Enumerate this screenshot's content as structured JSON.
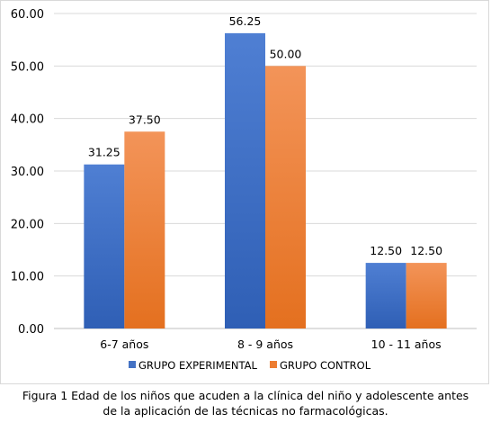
{
  "chart_data": {
    "type": "bar",
    "categories": [
      "6-7 años",
      "8 - 9 años",
      "10 - 11 años"
    ],
    "series": [
      {
        "name": "GRUPO EXPERIMENTAL",
        "values": [
          31.25,
          56.25,
          12.5
        ],
        "labels": [
          "31.25",
          "56.25",
          "12.50"
        ],
        "color": "#4472c4"
      },
      {
        "name": "GRUPO CONTROL",
        "values": [
          37.5,
          50.0,
          12.5
        ],
        "labels": [
          "37.50",
          "50.00",
          "12.50"
        ],
        "color": "#ed7d31"
      }
    ],
    "ylim": [
      0,
      60
    ],
    "yticks": [
      "0.00",
      "10.00",
      "20.00",
      "30.00",
      "40.00",
      "50.00",
      "60.00"
    ],
    "grid": true,
    "legend_position": "bottom"
  },
  "caption": {
    "line1": "Figura 1 Edad de los niños que acuden a la clínica del niño y adolescente antes",
    "line2": "de la aplicación de las técnicas no farmacológicas."
  }
}
